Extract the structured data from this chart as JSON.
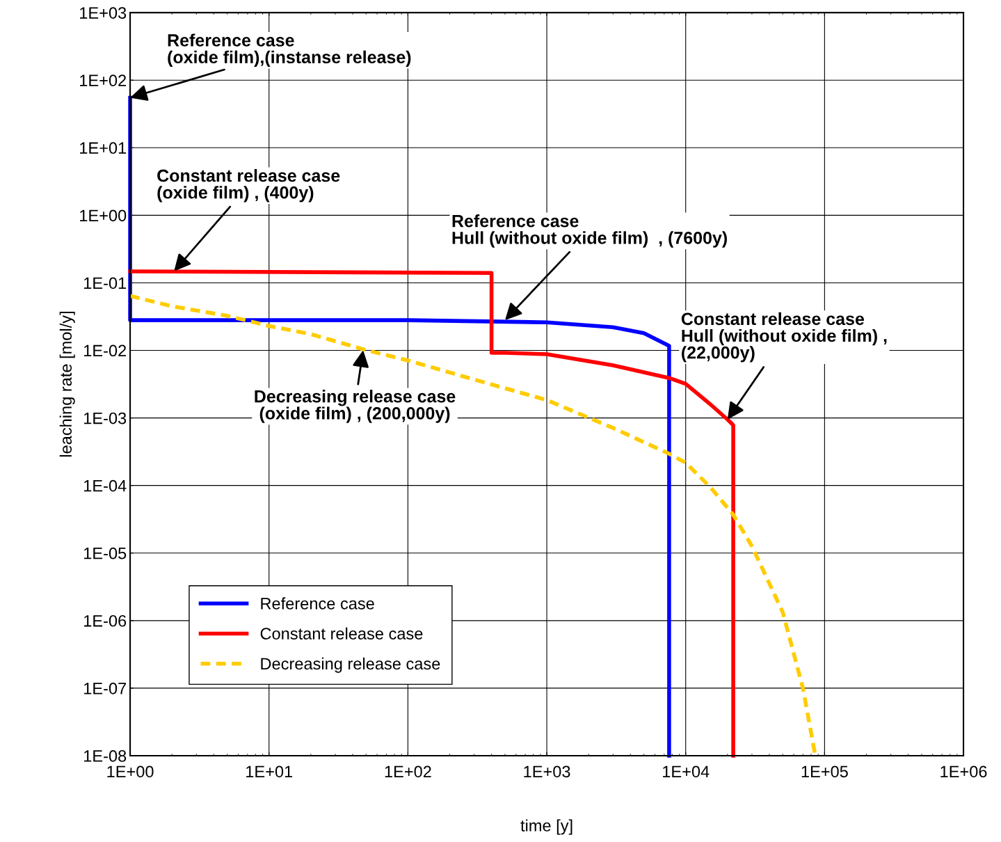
{
  "chart_data": {
    "type": "line",
    "xlabel": "time [y]",
    "ylabel": "leaching rate [mol/y]",
    "log": "xy",
    "grid": true,
    "legend": "bottom left",
    "marker": "none",
    "xlim": [
      1,
      1000000
    ],
    "ylim": [
      1e-08,
      1000
    ],
    "xticks": [
      {
        "value": 1,
        "label": "1E+00"
      },
      {
        "value": 10,
        "label": "1E+01"
      },
      {
        "value": 100,
        "label": "1E+02"
      },
      {
        "value": 1000,
        "label": "1E+03"
      },
      {
        "value": 10000,
        "label": "1E+04"
      },
      {
        "value": 100000,
        "label": "1E+05"
      },
      {
        "value": 1000000,
        "label": "1E+06"
      }
    ],
    "yticks": [
      {
        "value": 1e-08,
        "label": "1E-08"
      },
      {
        "value": 1e-07,
        "label": "1E-07"
      },
      {
        "value": 1e-06,
        "label": "1E-06"
      },
      {
        "value": 1e-05,
        "label": "1E-05"
      },
      {
        "value": 0.0001,
        "label": "1E-04"
      },
      {
        "value": 0.001,
        "label": "1E-03"
      },
      {
        "value": 0.01,
        "label": "1E-02"
      },
      {
        "value": 0.1,
        "label": "1E-01"
      },
      {
        "value": 1,
        "label": "1E+00"
      },
      {
        "value": 10,
        "label": "1E+01"
      },
      {
        "value": 100,
        "label": "1E+02"
      },
      {
        "value": 1000,
        "label": "1E+03"
      }
    ],
    "series": [
      {
        "name": "Reference case",
        "color": "#0000ff",
        "line_style": "solid",
        "x": [
          1,
          1,
          10,
          100,
          1000,
          3000,
          5000,
          7600,
          7600
        ],
        "values": [
          55,
          0.028,
          0.028,
          0.028,
          0.026,
          0.022,
          0.018,
          0.0117,
          1e-08
        ]
      },
      {
        "name": "Constant release case",
        "color": "#ff0000",
        "line_style": "solid",
        "x": [
          1,
          400,
          400,
          500,
          1000,
          3000,
          7600,
          10000,
          15000,
          20000,
          22000,
          22000
        ],
        "values": [
          0.148,
          0.14,
          0.0092,
          0.0092,
          0.0088,
          0.006,
          0.0039,
          0.0032,
          0.0016,
          0.00095,
          0.00078,
          1e-08
        ]
      },
      {
        "name": "Decreasing release case",
        "color": "#ffcc00",
        "line_style": "dashed",
        "x": [
          1,
          2,
          5,
          10,
          20,
          50,
          100,
          300,
          1000,
          3000,
          7600,
          10000,
          15000,
          22000,
          30000,
          50000,
          70000,
          85000
        ],
        "values": [
          0.064,
          0.045,
          0.0325,
          0.023,
          0.0174,
          0.0101,
          0.0071,
          0.0037,
          0.00184,
          0.00071,
          0.000295,
          0.000217,
          9.5e-05,
          3.7e-05,
          1.26e-05,
          1.33e-06,
          9.8e-08,
          1.1e-08
        ]
      }
    ],
    "annotations": [
      {
        "text": "Reference case\n(oxide film),(instanse release)",
        "x": 1,
        "y": 55
      },
      {
        "text": "Constant release case\n(oxide film) , (400y)",
        "x": 2.07,
        "y": 0.148
      },
      {
        "text": "Reference case\nHull (without oxide film)  , (7600y)",
        "x": 500,
        "y": 0.028
      },
      {
        "text": "Constant release case\nHull (without oxide film) ,\n(22,000y)",
        "x": 20000,
        "y": 0.00095
      },
      {
        "text": "Decreasing release case\n(oxide film) , (200,000y)",
        "x": 47.6,
        "y": 0.0101
      }
    ]
  }
}
